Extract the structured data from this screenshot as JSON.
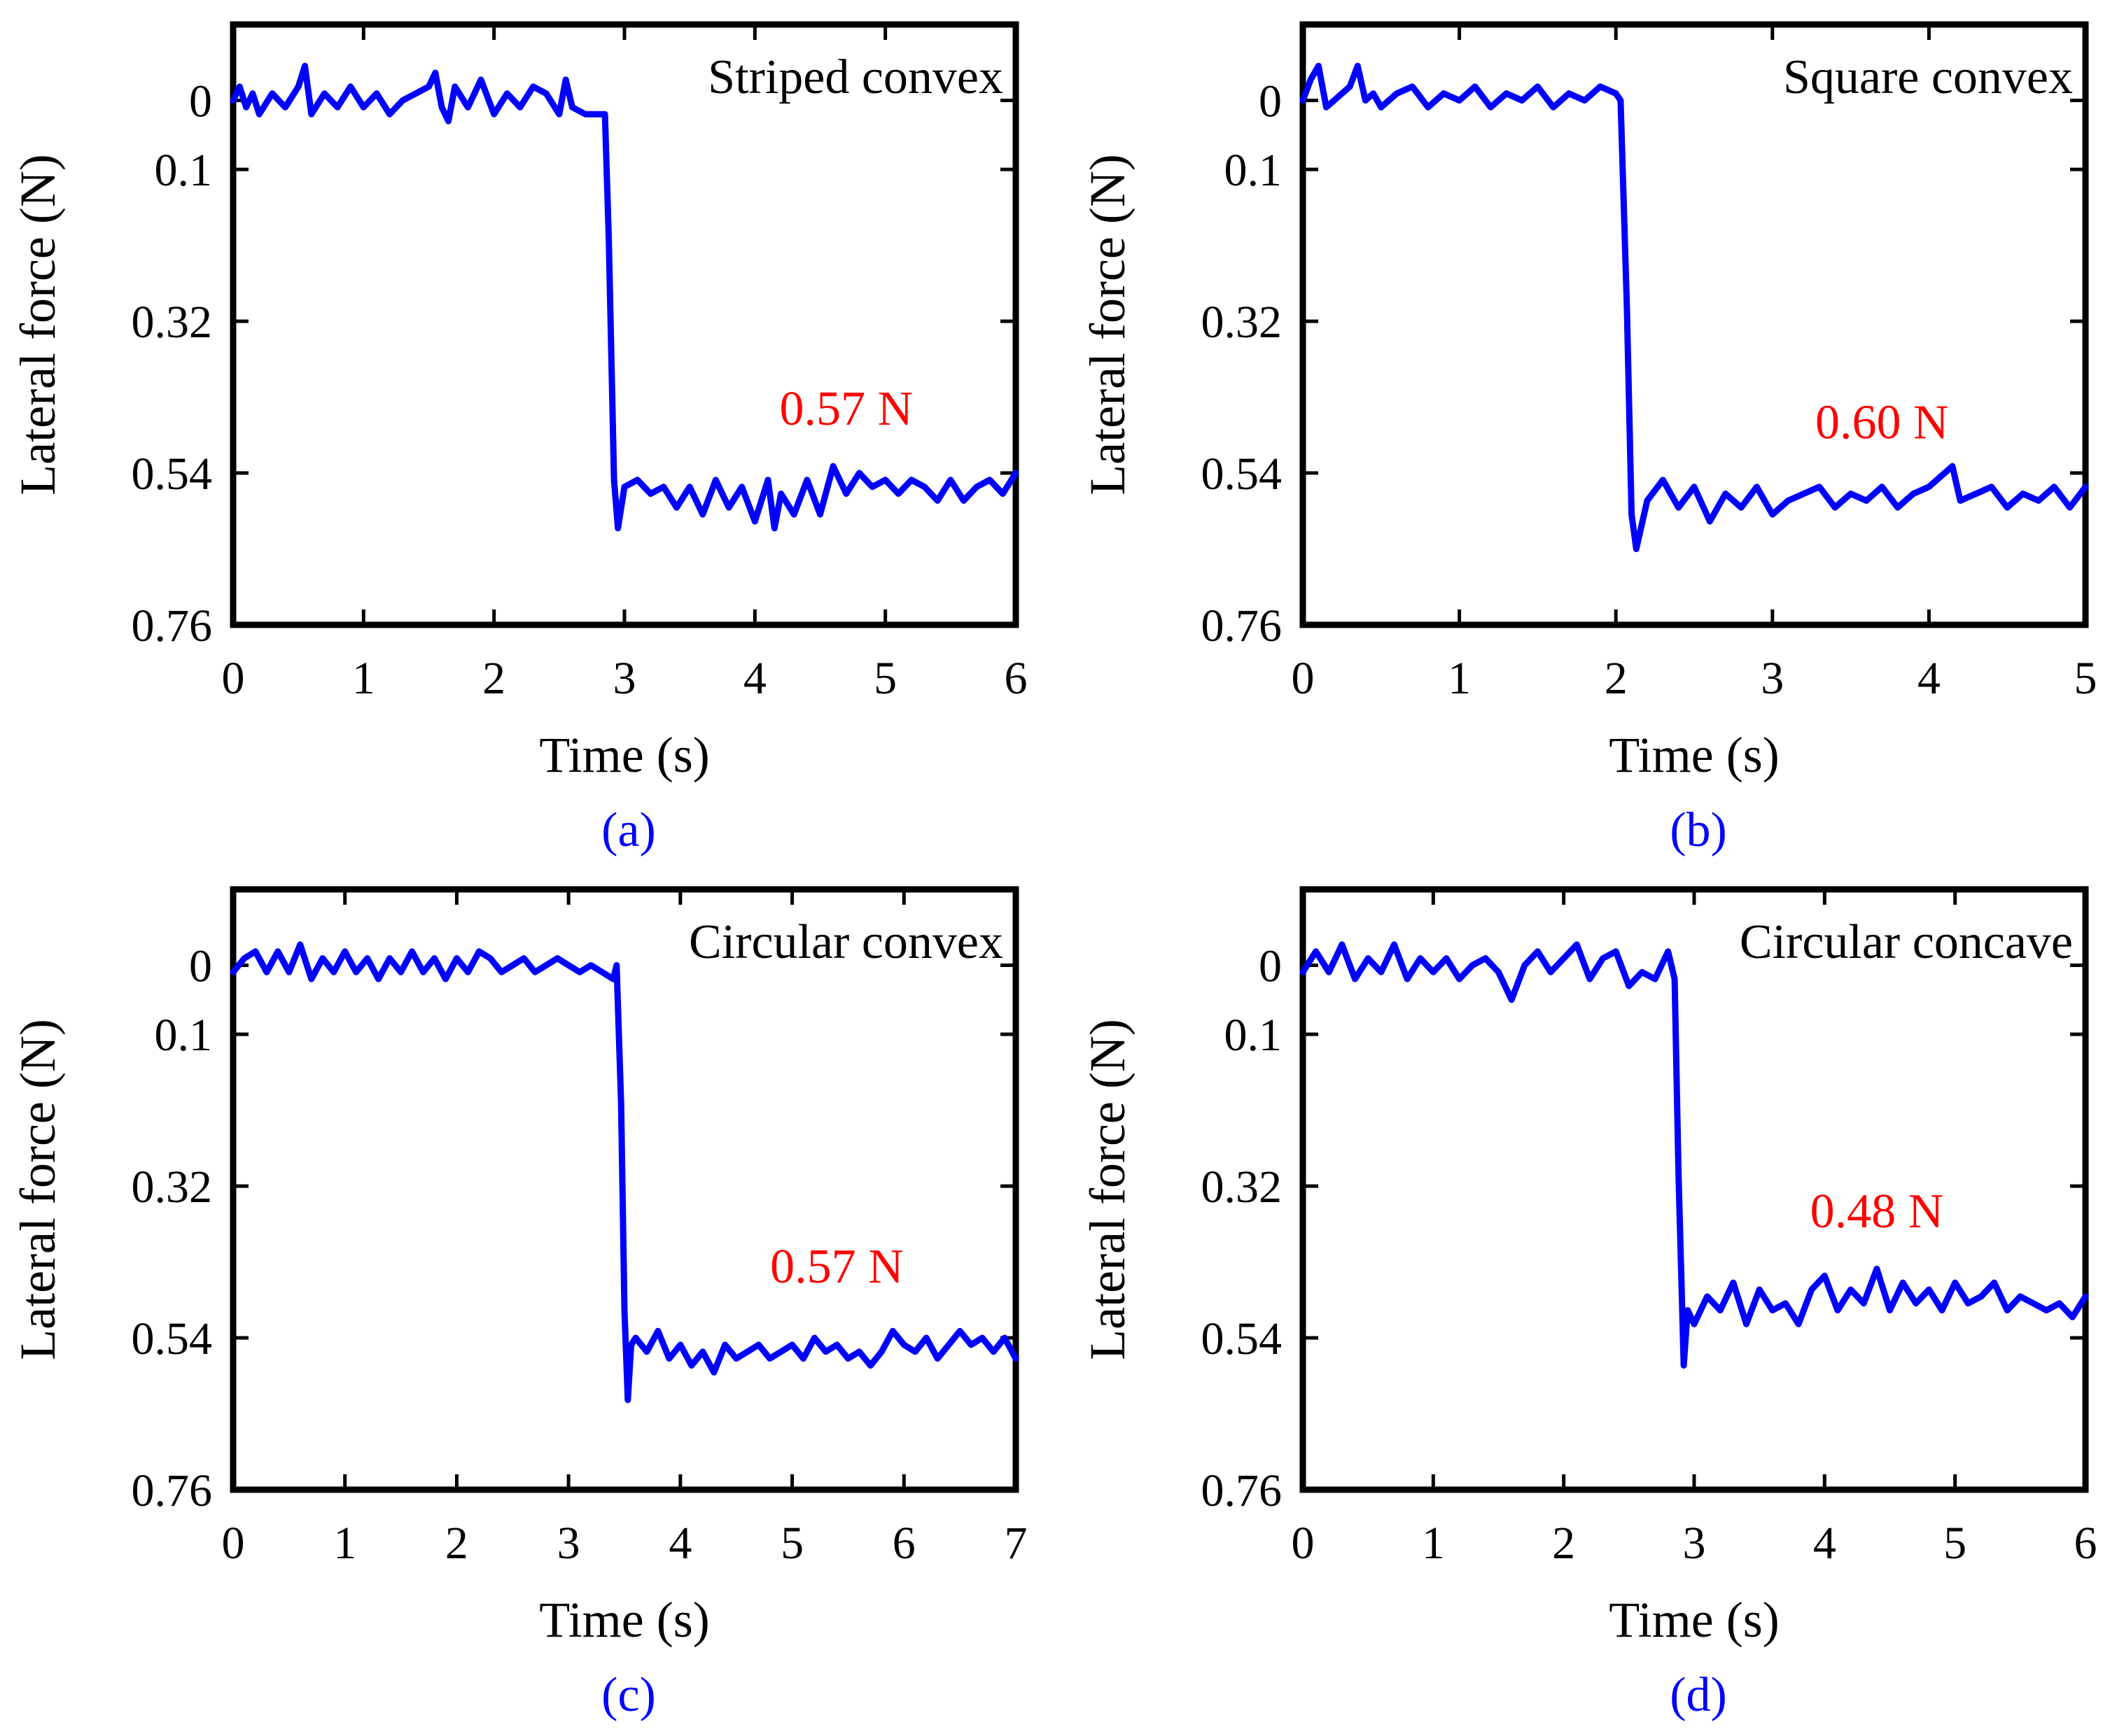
{
  "figure": {
    "accent_color": "#0000ff",
    "annotation_color": "#ff0000",
    "axis_color": "#000000"
  },
  "chart_data": [
    {
      "type": "line",
      "id": "a",
      "title": "Striped convex",
      "caption": "(a)",
      "xlabel": "Time (s)",
      "ylabel": "Lateral force (N)",
      "xlim": [
        0,
        6
      ],
      "ylim": [
        -0.11,
        0.76
      ],
      "y_inverted": true,
      "grid": false,
      "xticks": [
        "0",
        "1",
        "2",
        "3",
        "4",
        "5",
        "6"
      ],
      "yticks": [
        "0",
        "0.1",
        "0.32",
        "0.54",
        "0.76"
      ],
      "ytick_values": [
        0,
        0.1,
        0.32,
        0.54,
        0.76
      ],
      "annotation": {
        "text": "0.57 N",
        "x": 4.7,
        "y": 0.47
      },
      "series": [
        {
          "color": "#0000ff",
          "x": [
            0.0,
            0.05,
            0.1,
            0.15,
            0.2,
            0.3,
            0.4,
            0.5,
            0.55,
            0.6,
            0.7,
            0.8,
            0.9,
            1.0,
            1.1,
            1.2,
            1.3,
            1.4,
            1.5,
            1.55,
            1.6,
            1.65,
            1.7,
            1.8,
            1.9,
            2.0,
            2.1,
            2.2,
            2.3,
            2.4,
            2.5,
            2.55,
            2.6,
            2.7,
            2.8,
            2.85,
            2.88,
            2.92,
            2.95,
            3.0,
            3.1,
            3.2,
            3.3,
            3.4,
            3.5,
            3.6,
            3.7,
            3.8,
            3.9,
            4.0,
            4.1,
            4.15,
            4.2,
            4.3,
            4.4,
            4.5,
            4.6,
            4.7,
            4.8,
            4.9,
            5.0,
            5.1,
            5.2,
            5.3,
            5.4,
            5.5,
            5.6,
            5.7,
            5.8,
            5.9,
            6.0
          ],
          "y": [
            0.0,
            -0.02,
            0.01,
            -0.01,
            0.02,
            -0.01,
            0.01,
            -0.02,
            -0.05,
            0.02,
            -0.01,
            0.01,
            -0.02,
            0.01,
            -0.01,
            0.02,
            0.0,
            -0.01,
            -0.02,
            -0.04,
            0.01,
            0.03,
            -0.02,
            0.01,
            -0.03,
            0.02,
            -0.01,
            0.01,
            -0.02,
            -0.01,
            0.02,
            -0.03,
            0.01,
            0.02,
            0.02,
            0.02,
            0.2,
            0.55,
            0.62,
            0.56,
            0.55,
            0.57,
            0.56,
            0.59,
            0.56,
            0.6,
            0.55,
            0.59,
            0.56,
            0.61,
            0.55,
            0.62,
            0.57,
            0.6,
            0.55,
            0.6,
            0.53,
            0.57,
            0.54,
            0.56,
            0.55,
            0.57,
            0.55,
            0.56,
            0.58,
            0.55,
            0.58,
            0.56,
            0.55,
            0.57,
            0.54
          ]
        }
      ]
    },
    {
      "type": "line",
      "id": "b",
      "title": "Square convex",
      "caption": "(b)",
      "xlabel": "Time (s)",
      "ylabel": "Lateral force (N)",
      "xlim": [
        0,
        5
      ],
      "ylim": [
        -0.11,
        0.76
      ],
      "y_inverted": true,
      "grid": false,
      "xticks": [
        "0",
        "1",
        "2",
        "3",
        "4",
        "5"
      ],
      "yticks": [
        "0",
        "0.1",
        "0.32",
        "0.54",
        "0.76"
      ],
      "ytick_values": [
        0,
        0.1,
        0.32,
        0.54,
        0.76
      ],
      "annotation": {
        "text": "0.60 N",
        "x": 3.7,
        "y": 0.49
      },
      "series": [
        {
          "color": "#0000ff",
          "x": [
            0.0,
            0.05,
            0.1,
            0.15,
            0.2,
            0.3,
            0.35,
            0.4,
            0.45,
            0.5,
            0.6,
            0.7,
            0.8,
            0.9,
            1.0,
            1.1,
            1.2,
            1.3,
            1.4,
            1.5,
            1.6,
            1.7,
            1.8,
            1.9,
            2.0,
            2.03,
            2.07,
            2.1,
            2.13,
            2.2,
            2.3,
            2.4,
            2.5,
            2.6,
            2.7,
            2.8,
            2.9,
            3.0,
            3.1,
            3.2,
            3.3,
            3.4,
            3.5,
            3.6,
            3.7,
            3.8,
            3.9,
            4.0,
            4.1,
            4.15,
            4.2,
            4.3,
            4.4,
            4.5,
            4.6,
            4.7,
            4.8,
            4.9,
            5.0
          ],
          "y": [
            0.0,
            -0.03,
            -0.05,
            0.01,
            0.0,
            -0.02,
            -0.05,
            0.0,
            -0.01,
            0.01,
            -0.01,
            -0.02,
            0.01,
            -0.01,
            0.0,
            -0.02,
            0.01,
            -0.01,
            0.0,
            -0.02,
            0.01,
            -0.01,
            0.0,
            -0.02,
            -0.01,
            0.0,
            0.3,
            0.6,
            0.65,
            0.58,
            0.55,
            0.59,
            0.56,
            0.61,
            0.57,
            0.59,
            0.56,
            0.6,
            0.58,
            0.57,
            0.56,
            0.59,
            0.57,
            0.58,
            0.56,
            0.59,
            0.57,
            0.56,
            0.54,
            0.53,
            0.58,
            0.57,
            0.56,
            0.59,
            0.57,
            0.58,
            0.56,
            0.59,
            0.56
          ]
        }
      ]
    },
    {
      "type": "line",
      "id": "c",
      "title": "Circular convex",
      "caption": "(c)",
      "xlabel": "Time (s)",
      "ylabel": "Lateral force (N)",
      "xlim": [
        0,
        7
      ],
      "ylim": [
        -0.11,
        0.76
      ],
      "y_inverted": true,
      "grid": false,
      "xticks": [
        "0",
        "1",
        "2",
        "3",
        "4",
        "5",
        "6",
        "7"
      ],
      "yticks": [
        "0",
        "0.1",
        "0.32",
        "0.54",
        "0.76"
      ],
      "ytick_values": [
        0,
        0.1,
        0.32,
        0.54,
        0.76
      ],
      "annotation": {
        "text": "0.57 N",
        "x": 5.4,
        "y": 0.46
      },
      "series": [
        {
          "color": "#0000ff",
          "x": [
            0.0,
            0.1,
            0.2,
            0.3,
            0.4,
            0.5,
            0.6,
            0.7,
            0.8,
            0.9,
            1.0,
            1.1,
            1.2,
            1.3,
            1.4,
            1.5,
            1.6,
            1.7,
            1.8,
            1.9,
            2.0,
            2.1,
            2.2,
            2.3,
            2.4,
            2.5,
            2.6,
            2.7,
            2.8,
            2.9,
            3.0,
            3.1,
            3.2,
            3.3,
            3.4,
            3.43,
            3.47,
            3.5,
            3.53,
            3.56,
            3.6,
            3.7,
            3.8,
            3.9,
            4.0,
            4.1,
            4.2,
            4.3,
            4.4,
            4.5,
            4.6,
            4.7,
            4.8,
            4.9,
            5.0,
            5.1,
            5.2,
            5.3,
            5.4,
            5.5,
            5.6,
            5.7,
            5.8,
            5.9,
            6.0,
            6.1,
            6.2,
            6.3,
            6.4,
            6.5,
            6.6,
            6.7,
            6.8,
            6.9,
            7.0
          ],
          "y": [
            0.01,
            -0.01,
            -0.02,
            0.01,
            -0.02,
            0.01,
            -0.03,
            0.02,
            -0.01,
            0.01,
            -0.02,
            0.01,
            -0.01,
            0.02,
            -0.01,
            0.01,
            -0.02,
            0.01,
            -0.01,
            0.02,
            -0.01,
            0.01,
            -0.02,
            -0.01,
            0.01,
            0.0,
            -0.01,
            0.01,
            0.0,
            -0.01,
            0.0,
            0.01,
            0.0,
            0.01,
            0.02,
            0.0,
            0.2,
            0.5,
            0.63,
            0.55,
            0.54,
            0.56,
            0.53,
            0.57,
            0.55,
            0.58,
            0.56,
            0.59,
            0.55,
            0.57,
            0.56,
            0.55,
            0.57,
            0.56,
            0.55,
            0.57,
            0.54,
            0.56,
            0.55,
            0.57,
            0.56,
            0.58,
            0.56,
            0.53,
            0.55,
            0.56,
            0.54,
            0.57,
            0.55,
            0.53,
            0.55,
            0.54,
            0.56,
            0.54,
            0.57
          ]
        }
      ]
    },
    {
      "type": "line",
      "id": "d",
      "title": "Circular concave",
      "caption": "(d)",
      "xlabel": "Time (s)",
      "ylabel": "Lateral force (N)",
      "xlim": [
        0,
        6
      ],
      "ylim": [
        -0.11,
        0.76
      ],
      "y_inverted": true,
      "grid": false,
      "xticks": [
        "0",
        "1",
        "2",
        "3",
        "4",
        "5",
        "6"
      ],
      "yticks": [
        "0",
        "0.1",
        "0.32",
        "0.54",
        "0.76"
      ],
      "ytick_values": [
        0,
        0.1,
        0.32,
        0.54,
        0.76
      ],
      "annotation": {
        "text": "0.48 N",
        "x": 4.4,
        "y": 0.38
      },
      "series": [
        {
          "color": "#0000ff",
          "x": [
            0.0,
            0.1,
            0.2,
            0.3,
            0.4,
            0.5,
            0.6,
            0.7,
            0.8,
            0.9,
            1.0,
            1.1,
            1.2,
            1.3,
            1.4,
            1.5,
            1.6,
            1.7,
            1.8,
            1.9,
            2.0,
            2.1,
            2.2,
            2.3,
            2.4,
            2.5,
            2.6,
            2.7,
            2.8,
            2.85,
            2.88,
            2.92,
            2.95,
            3.0,
            3.1,
            3.2,
            3.3,
            3.4,
            3.5,
            3.6,
            3.7,
            3.8,
            3.9,
            4.0,
            4.1,
            4.2,
            4.3,
            4.4,
            4.5,
            4.6,
            4.7,
            4.8,
            4.9,
            5.0,
            5.1,
            5.2,
            5.3,
            5.4,
            5.5,
            5.6,
            5.7,
            5.8,
            5.9,
            6.0
          ],
          "y": [
            0.01,
            -0.02,
            0.01,
            -0.03,
            0.02,
            -0.01,
            0.01,
            -0.03,
            0.02,
            -0.01,
            0.01,
            -0.01,
            0.02,
            0.0,
            -0.01,
            0.01,
            0.05,
            0.0,
            -0.02,
            0.01,
            -0.01,
            -0.03,
            0.02,
            -0.01,
            -0.02,
            0.03,
            0.01,
            0.02,
            -0.02,
            0.02,
            0.3,
            0.58,
            0.5,
            0.52,
            0.48,
            0.5,
            0.46,
            0.52,
            0.47,
            0.5,
            0.49,
            0.52,
            0.47,
            0.45,
            0.5,
            0.47,
            0.49,
            0.44,
            0.5,
            0.46,
            0.49,
            0.47,
            0.5,
            0.46,
            0.49,
            0.48,
            0.46,
            0.5,
            0.48,
            0.49,
            0.5,
            0.49,
            0.51,
            0.48
          ]
        }
      ]
    }
  ]
}
